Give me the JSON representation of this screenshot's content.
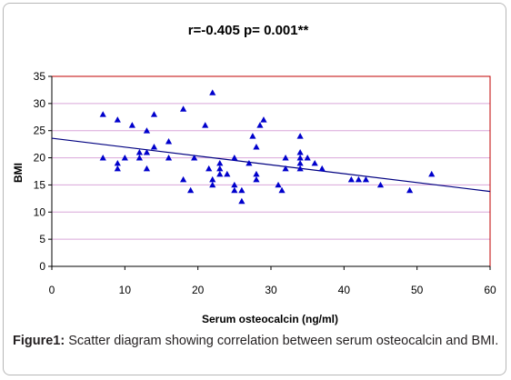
{
  "chart_data": {
    "type": "scatter",
    "title": "r=-0.405     p= 0.001**",
    "xlabel": "Serum osteocalcin  (ng/ml)",
    "ylabel": "BMI",
    "xlim": [
      0,
      60
    ],
    "ylim": [
      0,
      35
    ],
    "x_ticks": [
      "0",
      "10",
      "20",
      "30",
      "40",
      "50",
      "60"
    ],
    "y_ticks": [
      "0",
      "5",
      "10",
      "15",
      "20",
      "25",
      "30",
      "35"
    ],
    "grid": "horizontal",
    "marker": "triangle",
    "colors": {
      "marker": "#0000cc",
      "grid": "#d9a6d9",
      "plot_border": "#c00000",
      "trendline": "#000080"
    },
    "trendline": {
      "x": [
        0,
        60
      ],
      "y": [
        23.6,
        13.8
      ]
    },
    "points": [
      {
        "x": 7,
        "y": 28
      },
      {
        "x": 7,
        "y": 20
      },
      {
        "x": 9,
        "y": 27
      },
      {
        "x": 9,
        "y": 19
      },
      {
        "x": 9,
        "y": 18
      },
      {
        "x": 10,
        "y": 20
      },
      {
        "x": 11,
        "y": 26
      },
      {
        "x": 12,
        "y": 21
      },
      {
        "x": 12,
        "y": 20
      },
      {
        "x": 13,
        "y": 25
      },
      {
        "x": 13,
        "y": 21
      },
      {
        "x": 13,
        "y": 18
      },
      {
        "x": 14,
        "y": 28
      },
      {
        "x": 14,
        "y": 22
      },
      {
        "x": 16,
        "y": 23
      },
      {
        "x": 16,
        "y": 20
      },
      {
        "x": 18,
        "y": 29
      },
      {
        "x": 18,
        "y": 16
      },
      {
        "x": 19,
        "y": 14
      },
      {
        "x": 19.5,
        "y": 20
      },
      {
        "x": 21,
        "y": 26
      },
      {
        "x": 21.5,
        "y": 18
      },
      {
        "x": 22,
        "y": 32
      },
      {
        "x": 22,
        "y": 16
      },
      {
        "x": 22,
        "y": 15
      },
      {
        "x": 23,
        "y": 19
      },
      {
        "x": 23,
        "y": 18
      },
      {
        "x": 23,
        "y": 17
      },
      {
        "x": 24,
        "y": 17
      },
      {
        "x": 25,
        "y": 20
      },
      {
        "x": 25,
        "y": 15
      },
      {
        "x": 25,
        "y": 14
      },
      {
        "x": 26,
        "y": 14
      },
      {
        "x": 26,
        "y": 12
      },
      {
        "x": 27,
        "y": 19
      },
      {
        "x": 27.5,
        "y": 24
      },
      {
        "x": 28,
        "y": 22
      },
      {
        "x": 28,
        "y": 17
      },
      {
        "x": 28,
        "y": 16
      },
      {
        "x": 28.5,
        "y": 26
      },
      {
        "x": 29,
        "y": 27
      },
      {
        "x": 31,
        "y": 15
      },
      {
        "x": 31.5,
        "y": 14
      },
      {
        "x": 32,
        "y": 20
      },
      {
        "x": 32,
        "y": 18
      },
      {
        "x": 34,
        "y": 24
      },
      {
        "x": 34,
        "y": 21
      },
      {
        "x": 34,
        "y": 20
      },
      {
        "x": 34,
        "y": 19
      },
      {
        "x": 34,
        "y": 18
      },
      {
        "x": 35,
        "y": 20
      },
      {
        "x": 36,
        "y": 19
      },
      {
        "x": 37,
        "y": 18
      },
      {
        "x": 41,
        "y": 16
      },
      {
        "x": 42,
        "y": 16
      },
      {
        "x": 43,
        "y": 16
      },
      {
        "x": 45,
        "y": 15
      },
      {
        "x": 49,
        "y": 14
      },
      {
        "x": 52,
        "y": 17
      }
    ]
  },
  "caption": {
    "label": "Figure1:",
    "text": " Scatter diagram showing correlation between serum osteocalcin and BMI."
  }
}
